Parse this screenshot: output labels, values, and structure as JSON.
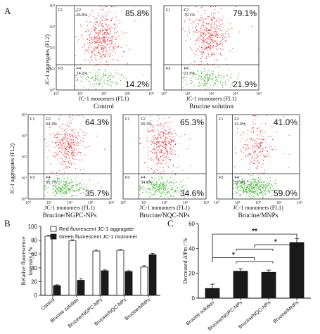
{
  "panel_labels": {
    "a": "A",
    "b": "B",
    "c": "C"
  },
  "flow": {
    "x_axis_label": "JC-1 monomers (FL1)",
    "y_axis_label": "JC-1 aggregates (FL2)",
    "x_ticks": [
      "10⁰",
      "10¹",
      "10²",
      "10³",
      "10⁴"
    ],
    "y_ticks": [
      "10⁴",
      "10³",
      "10²",
      "10¹",
      "10⁰"
    ],
    "quadrant_names": [
      "F1",
      "F2",
      "F3",
      "F4"
    ],
    "colors": {
      "aggregates": "#e8262b",
      "monomers": "#49b83b"
    },
    "plots": [
      {
        "caption": "Control",
        "upper_right": "85.8%",
        "lower_right": "14.2%",
        "small_ur": "85.8%",
        "small_lr": "14.2%",
        "aggregates_pct": 85.8
      },
      {
        "caption": "Brucine solution",
        "upper_right": "79.1%",
        "lower_right": "21.9%",
        "small_ur": "79.1%",
        "small_lr": "21.9%",
        "aggregates_pct": 79.1
      },
      {
        "caption": "Brucine/NGPC-NPs",
        "upper_right": "64.3%",
        "lower_right": "35.7%",
        "small_ur": "64.3%",
        "small_lr": "35.7%",
        "aggregates_pct": 64.3
      },
      {
        "caption": "Brucine/NQC-NPs",
        "upper_right": "65.3%",
        "lower_right": "34.6%",
        "small_ur": "65.3%",
        "small_lr": "34.6%",
        "aggregates_pct": 65.3
      },
      {
        "caption": "Brucine/MNPs",
        "upper_right": "41.0%",
        "lower_right": "59.0%",
        "small_ur": "41.0%",
        "small_lr": "59.0%",
        "aggregates_pct": 41.0
      }
    ]
  },
  "chart_data": [
    {
      "type": "bar",
      "ylabel": "Relative fluorescence intensity / %",
      "ylim": [
        0,
        100
      ],
      "yticks": [
        "0",
        "20",
        "40",
        "60",
        "80",
        "100"
      ],
      "categories": [
        "Control",
        "Brucine solution",
        "Brucine/NGPC-NPs",
        "Brucine/NQC-NPs",
        "Brucine/MNPs"
      ],
      "series": [
        {
          "name": "Red fluorescent JC-1 aggragate",
          "color": "#ffffff",
          "values": [
            85.8,
            79.1,
            64.3,
            65.3,
            41.0
          ],
          "errors": [
            1.2,
            1.5,
            1.4,
            1.2,
            2.0
          ]
        },
        {
          "name": "Green fluorescent JC-1 monomer",
          "color": "#1a1a1a",
          "values": [
            14.2,
            21.9,
            35.7,
            34.6,
            59.0
          ],
          "errors": [
            1.2,
            2.5,
            1.3,
            1.2,
            1.8
          ]
        }
      ],
      "legend": "top-right"
    },
    {
      "type": "bar",
      "ylabel": "Decreased ΔΨm / %",
      "ylim": [
        0,
        60
      ],
      "yticks": [
        "0",
        "20",
        "40",
        "60"
      ],
      "categories": [
        "Brucine solution",
        "Brucine/NGPC-NPs",
        "Brucine/NQC-NPs",
        "Brucine/MNPs"
      ],
      "series": [
        {
          "values": [
            7.8,
            21.7,
            20.8,
            44.8
          ],
          "errors": [
            3.5,
            2.0,
            1.8,
            3.0
          ]
        }
      ],
      "significance": [
        "*",
        "*",
        "**"
      ]
    }
  ]
}
